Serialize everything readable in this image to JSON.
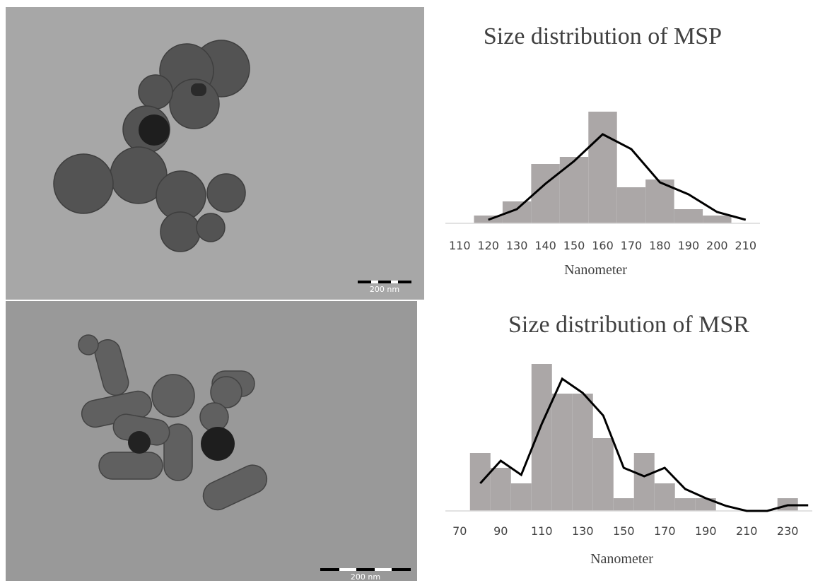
{
  "micrographs": [
    {
      "scale_label": "200 nm"
    },
    {
      "scale_label": "200 nm"
    }
  ],
  "chart_data": [
    {
      "type": "histogram",
      "title": "Size distribution of MSP",
      "xlabel": "Nanometer",
      "bins": [
        115,
        125,
        135,
        145,
        155,
        165,
        175,
        185,
        195,
        205
      ],
      "counts": [
        11,
        31,
        84,
        94,
        158,
        51,
        62,
        20,
        11
      ],
      "color": "#aba7a7",
      "line": {
        "x": [
          120,
          130,
          140,
          150,
          160,
          170,
          180,
          190,
          200,
          210
        ],
        "values": [
          5,
          20,
          56,
          88,
          126,
          105,
          58,
          41,
          16,
          5
        ],
        "color": "#000000"
      },
      "xlim": [
        105,
        215
      ],
      "xticks": [
        110,
        120,
        130,
        140,
        150,
        160,
        170,
        180,
        190,
        200,
        210
      ],
      "ylim": [
        0,
        170
      ]
    },
    {
      "type": "histogram",
      "title": "Size distribution of MSR",
      "xlabel": "Nanometer",
      "bins": [
        75,
        85,
        95,
        105,
        115,
        125,
        135,
        145,
        155,
        165,
        175,
        185,
        195,
        205,
        215,
        225,
        235
      ],
      "counts": [
        82,
        61,
        39,
        208,
        166,
        166,
        103,
        18,
        82,
        39,
        18,
        18,
        0,
        0,
        0,
        18
      ],
      "color": "#aba7a7",
      "line": {
        "x": [
          80,
          90,
          100,
          110,
          120,
          130,
          140,
          150,
          160,
          170,
          180,
          190,
          200,
          210,
          220,
          230,
          240
        ],
        "values": [
          39,
          71,
          51,
          123,
          187,
          167,
          135,
          61,
          49,
          61,
          31,
          18,
          7,
          0,
          0,
          8,
          8
        ],
        "color": "#000000"
      },
      "xlim": [
        63,
        242
      ],
      "xticks": [
        70,
        90,
        110,
        130,
        150,
        170,
        190,
        210,
        230
      ],
      "ylim": [
        0,
        220
      ]
    }
  ]
}
